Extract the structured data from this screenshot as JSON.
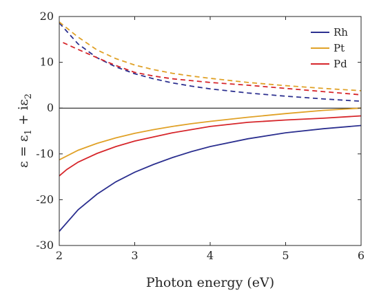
{
  "chart_data": {
    "type": "line",
    "xlabel": "Photon energy (eV)",
    "ylabel": {
      "base": "ε = ε",
      "sub1": "1",
      "mid": " + iε",
      "sub2": "2"
    },
    "xlim": [
      2,
      6
    ],
    "ylim": [
      -30,
      20
    ],
    "xticks": [
      2,
      3,
      4,
      5,
      6
    ],
    "yticks": [
      -30,
      -20,
      -10,
      0,
      10,
      20
    ],
    "grid": false,
    "legend_position": "top-right",
    "zero_line": true,
    "series": [
      {
        "name": "Rh",
        "color": "#2b2f8f",
        "eps1": {
          "x": [
            2.0,
            2.25,
            2.5,
            2.75,
            3.0,
            3.25,
            3.5,
            3.75,
            4.0,
            4.5,
            5.0,
            5.5,
            6.0
          ],
          "y": [
            -26.9,
            -22.2,
            -18.8,
            -16.1,
            -14.0,
            -12.3,
            -10.8,
            -9.5,
            -8.4,
            -6.7,
            -5.4,
            -4.5,
            -3.8
          ]
        },
        "eps2": {
          "x": [
            2.0,
            2.25,
            2.5,
            2.75,
            3.0,
            3.25,
            3.5,
            3.75,
            4.0,
            4.5,
            5.0,
            5.5,
            6.0
          ],
          "y": [
            18.6,
            14.0,
            11.0,
            9.0,
            7.5,
            6.4,
            5.5,
            4.8,
            4.2,
            3.3,
            2.6,
            2.0,
            1.5
          ]
        }
      },
      {
        "name": "Pt",
        "color": "#e0a126",
        "eps1": {
          "x": [
            2.0,
            2.25,
            2.5,
            2.75,
            3.0,
            3.25,
            3.5,
            3.75,
            4.0,
            4.5,
            5.0,
            5.5,
            6.0
          ],
          "y": [
            -11.3,
            -9.2,
            -7.7,
            -6.5,
            -5.5,
            -4.7,
            -4.0,
            -3.4,
            -2.9,
            -2.0,
            -1.2,
            -0.5,
            0.0
          ]
        },
        "eps2": {
          "x": [
            2.0,
            2.25,
            2.5,
            2.75,
            3.0,
            3.25,
            3.5,
            3.75,
            4.0,
            4.5,
            5.0,
            5.5,
            6.0
          ],
          "y": [
            18.8,
            15.5,
            12.7,
            10.8,
            9.4,
            8.4,
            7.6,
            7.0,
            6.5,
            5.6,
            4.9,
            4.3,
            3.8
          ]
        }
      },
      {
        "name": "Pd",
        "color": "#d6252a",
        "eps1": {
          "x": [
            2.0,
            2.1,
            2.25,
            2.5,
            2.75,
            3.0,
            3.25,
            3.5,
            3.75,
            4.0,
            4.5,
            5.0,
            5.5,
            6.0
          ],
          "y": [
            -14.8,
            -13.4,
            -11.8,
            -9.9,
            -8.4,
            -7.2,
            -6.3,
            -5.4,
            -4.7,
            -4.0,
            -3.1,
            -2.6,
            -2.2,
            -1.7
          ]
        },
        "eps2": {
          "x": [
            2.05,
            2.25,
            2.5,
            2.75,
            3.0,
            3.25,
            3.5,
            3.75,
            4.0,
            4.5,
            5.0,
            5.5,
            6.0
          ],
          "y": [
            14.3,
            12.8,
            11.0,
            9.3,
            7.8,
            7.0,
            6.4,
            6.0,
            5.6,
            5.0,
            4.3,
            3.6,
            2.9
          ]
        }
      }
    ]
  }
}
